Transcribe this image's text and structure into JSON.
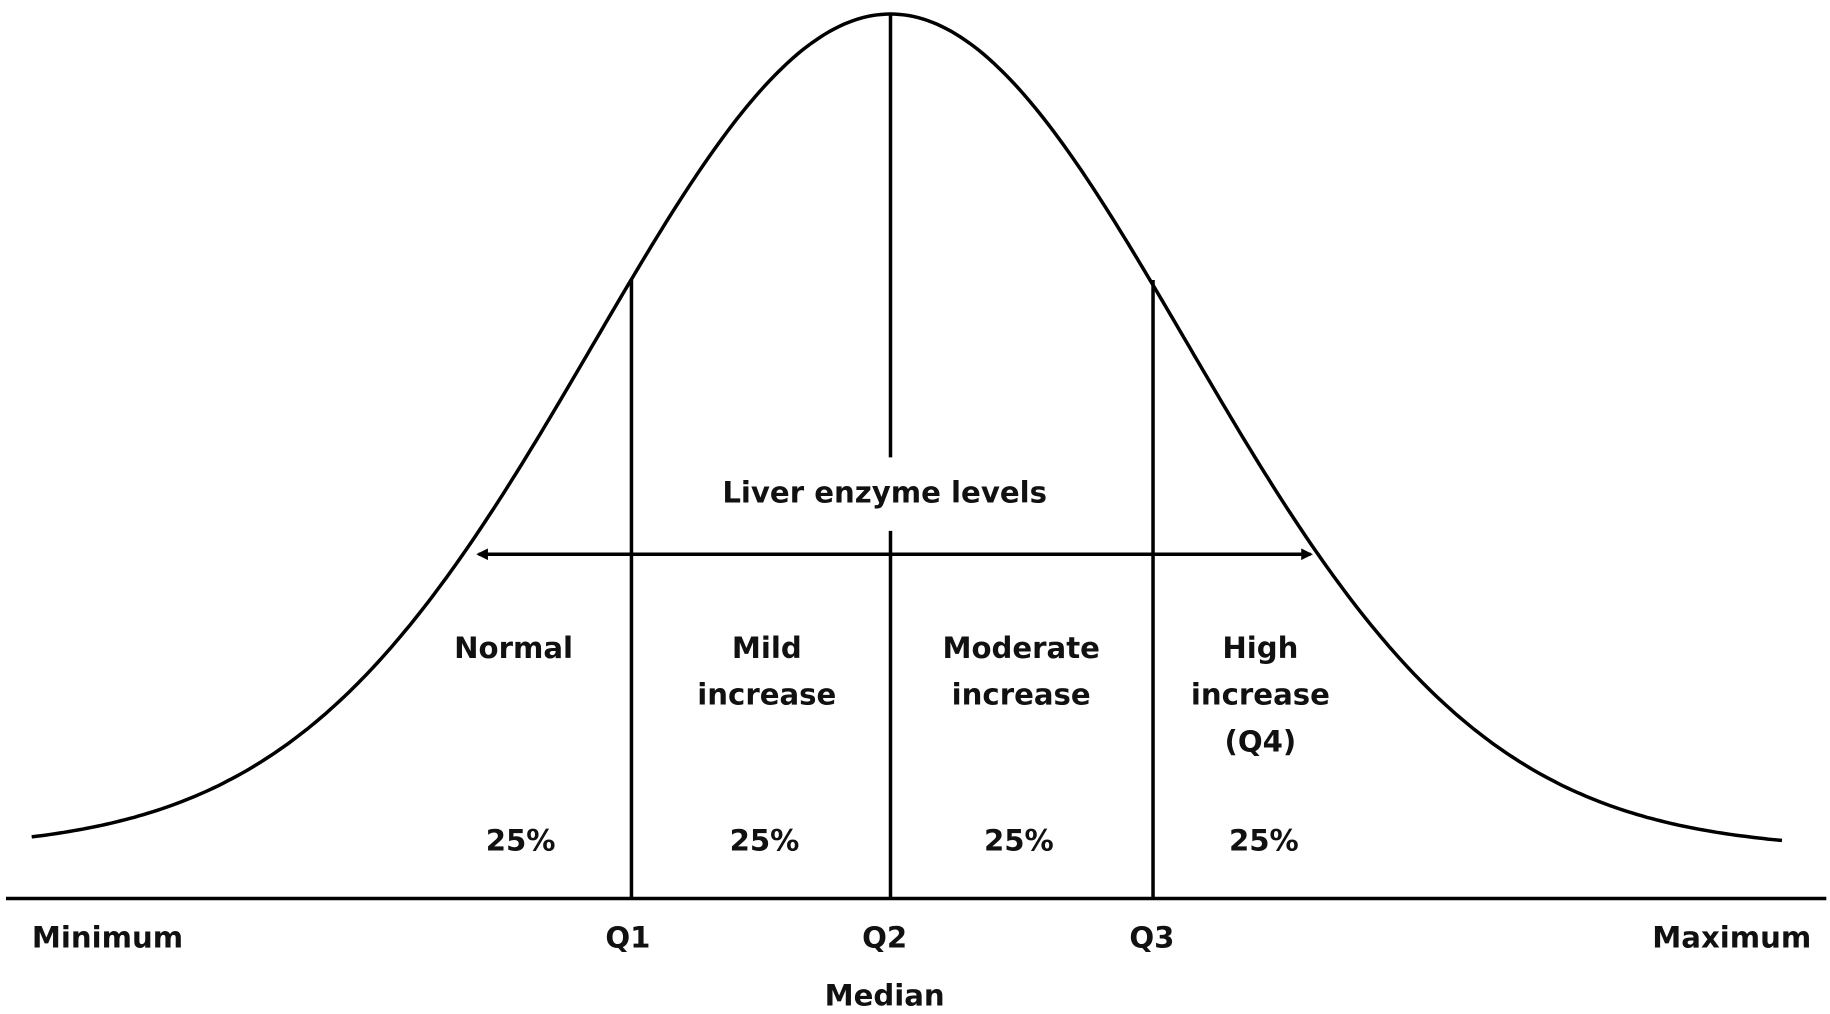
{
  "title": "Liver enzyme levels",
  "sections": [
    {
      "lines": [
        "Normal"
      ],
      "share": "25%"
    },
    {
      "lines": [
        "Mild",
        "increase"
      ],
      "share": "25%"
    },
    {
      "lines": [
        "Moderate",
        "increase"
      ],
      "share": "25%"
    },
    {
      "lines": [
        "High",
        "increase",
        "(Q4)"
      ],
      "share": "25%"
    }
  ],
  "axis_labels": [
    "Minimum",
    "Q1",
    "Q2",
    "Q3",
    "Maximum"
  ],
  "median_label": "Median"
}
